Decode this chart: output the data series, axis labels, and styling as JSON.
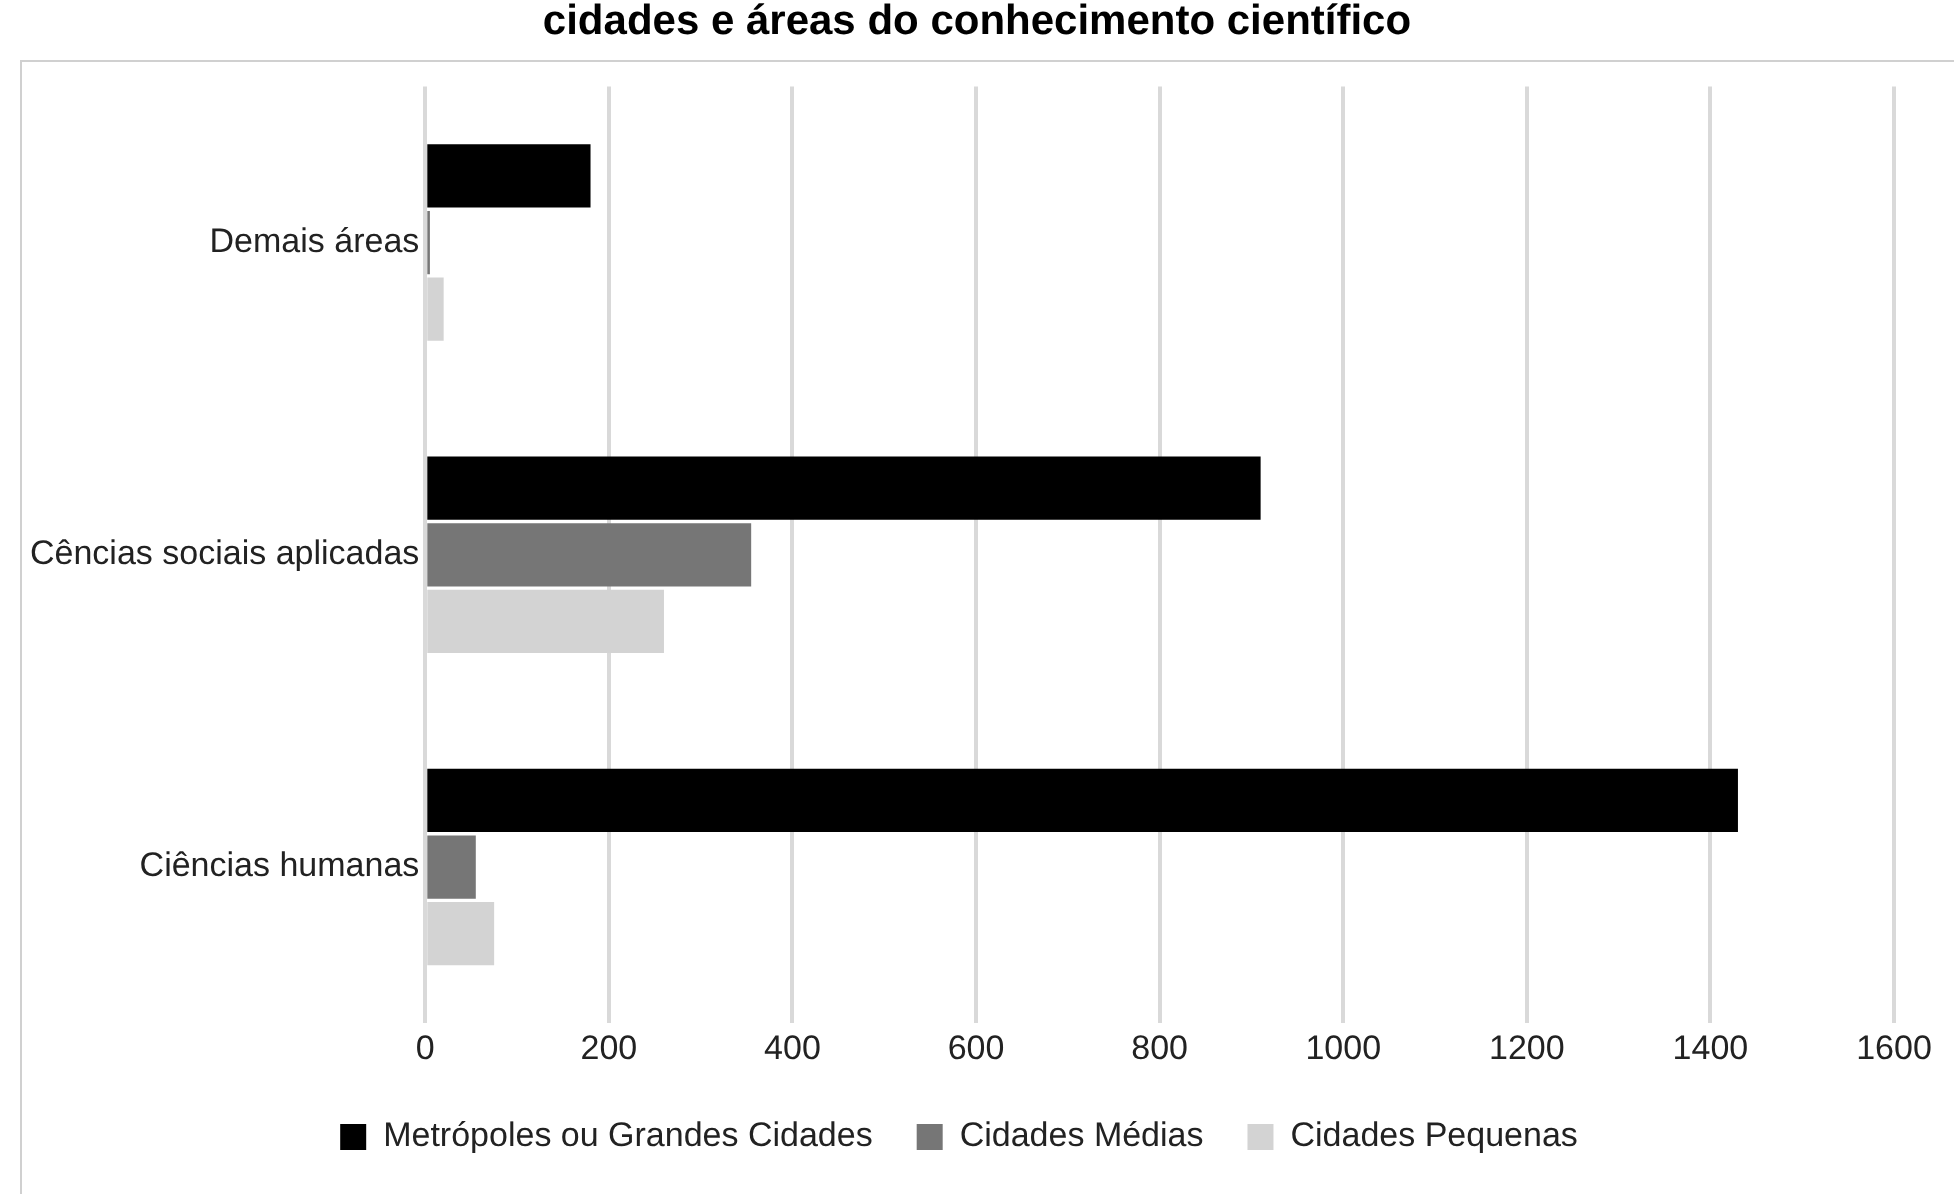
{
  "chart_data": {
    "type": "bar",
    "orientation": "horizontal",
    "title": "cidades e áreas do conhecimento científico",
    "categories": [
      "Demais áreas",
      "Cências sociais aplicadas",
      "Ciências humanas"
    ],
    "series": [
      {
        "name": "Metrópoles ou Grandes Cidades",
        "color": "#000000",
        "values": [
          180,
          910,
          1430
        ]
      },
      {
        "name": "Cidades Médias",
        "color": "#767676",
        "values": [
          5,
          355,
          55
        ]
      },
      {
        "name": "Cidades Pequenas",
        "color": "#d3d3d3",
        "values": [
          20,
          260,
          75
        ]
      }
    ],
    "xlim": [
      0,
      1600
    ],
    "xticks": [
      0,
      200,
      400,
      600,
      800,
      1000,
      1200,
      1400,
      1600
    ],
    "grid": "x",
    "legend": "bottom"
  }
}
